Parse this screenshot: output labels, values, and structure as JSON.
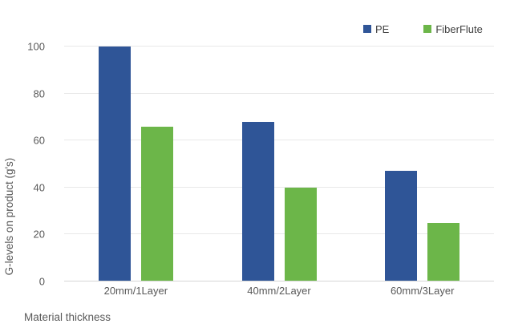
{
  "chart_data": {
    "type": "bar",
    "title": "",
    "categories": [
      "20mm/1Layer",
      "40mm/2Layer",
      "60mm/3Layer"
    ],
    "series": [
      {
        "name": "PE",
        "color": "#2F5597",
        "values": [
          100,
          68,
          47
        ]
      },
      {
        "name": "FiberFlute",
        "color": "#6CB649",
        "values": [
          66,
          40,
          25
        ]
      }
    ],
    "xlabel": "Material thickness",
    "ylabel": "G-levels on product (g's)",
    "ylim": [
      0,
      100
    ],
    "yticks": [
      0,
      20,
      40,
      60,
      80,
      100
    ],
    "grid": true,
    "legend_position": "top-right"
  },
  "colors": {
    "background": "#ffffff",
    "gridline": "#e8e8e8",
    "axis_line": "#d6d6d6",
    "tick_text": "#595959",
    "axis_title_text": "#595959",
    "legend_text": "#404040"
  }
}
